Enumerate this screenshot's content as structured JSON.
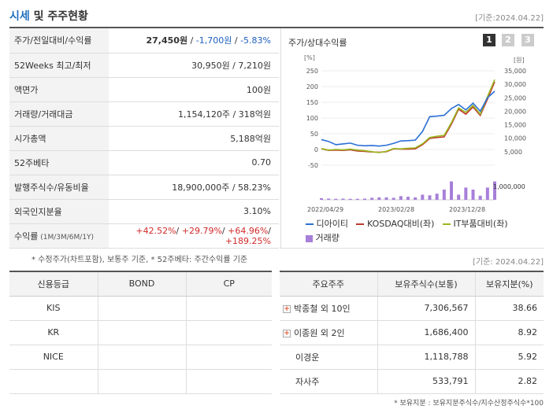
{
  "header": {
    "title_main": "시세",
    "title_rest": " 및 주주현황",
    "as_of": "[기준:2024.04.22]"
  },
  "summary": {
    "rows": [
      {
        "label": "주가/전일대비/수익률",
        "price": "27,450원",
        "sep1": " / ",
        "change": "-1,700원",
        "sep2": " / ",
        "rate": "-5.83%"
      },
      {
        "label": "52Weeks 최고/최저",
        "value": "30,950원 / 7,210원"
      },
      {
        "label": "액면가",
        "value": "100원"
      },
      {
        "label": "거래량/거래대금",
        "value": "1,154,120주 / 318억원"
      },
      {
        "label": "시가총액",
        "value": "5,188억원"
      },
      {
        "label": "52주베타",
        "value": "0.70"
      },
      {
        "label": "발행주식수/유동비율",
        "value": "18,900,000주 / 58.23%"
      },
      {
        "label": "외국인지분율",
        "value": "3.10%"
      },
      {
        "label": "수익률",
        "label_sub": " (1M/3M/6M/1Y)",
        "r1": "+42.52%",
        "r2": "+29.79%",
        "r3": "+64.96%",
        "r4": "+189.25%",
        "sep": "/ "
      }
    ],
    "note": "* 수정주가(차트포함), 보통주 기준, * 52주베타: 주간수익률 기준"
  },
  "chart": {
    "title": "주가/상대수익률",
    "pages": [
      "1",
      "2",
      "3"
    ],
    "active_page": 0,
    "left_unit": "[%]",
    "right_unit": "[원]",
    "left_ticks": [
      "250",
      "200",
      "150",
      "100",
      "50",
      "0",
      "-50"
    ],
    "right_ticks": [
      "35,000",
      "30,000",
      "25,000",
      "20,000",
      "15,000",
      "10,000",
      "5,000"
    ],
    "volume_tick": "1,000,000",
    "x_ticks": [
      "2022/04/29",
      "2023/02/28",
      "2023/12/28"
    ],
    "legend": [
      {
        "name": "디아이티",
        "color": "#2a6fd6",
        "kind": "line"
      },
      {
        "name": "KOSDAQ대비(좌)",
        "color": "#c0392b",
        "kind": "line"
      },
      {
        "name": "IT부품대비(좌)",
        "color": "#9ab820",
        "kind": "line"
      },
      {
        "name": "거래량",
        "color": "#a77fd9",
        "kind": "box"
      }
    ]
  },
  "chart_data": {
    "type": "line",
    "x_range": [
      "2022/04/29",
      "2024/04/22"
    ],
    "left_axis": {
      "label": "[%]",
      "ylim": [
        -50,
        250
      ]
    },
    "right_axis": {
      "label": "[원]",
      "ylim": [
        0,
        35000
      ]
    },
    "series": [
      {
        "name": "디아이티",
        "axis": "right",
        "values": [
          9500,
          8800,
          7600,
          7900,
          8200,
          7400,
          7200,
          7300,
          7100,
          7400,
          8100,
          9000,
          9100,
          9300,
          12500,
          18000,
          18200,
          18500,
          21000,
          22500,
          20500,
          23000,
          20000,
          25000,
          27450
        ]
      },
      {
        "name": "KOSDAQ대비(좌)",
        "axis": "left",
        "values": [
          2,
          -3,
          -2,
          -3,
          -1,
          -5,
          -6,
          -8,
          -9,
          -7,
          2,
          1,
          1,
          2,
          15,
          35,
          38,
          40,
          80,
          128,
          112,
          135,
          108,
          160,
          215
        ]
      },
      {
        "name": "IT부품대비(좌)",
        "axis": "left",
        "values": [
          3,
          -2,
          0,
          -1,
          1,
          -2,
          -4,
          -7,
          -10,
          -6,
          3,
          2,
          4,
          5,
          18,
          38,
          42,
          45,
          85,
          132,
          118,
          140,
          112,
          168,
          222
        ]
      },
      {
        "name": "거래량",
        "axis": "volume",
        "type": "bar",
        "values": [
          0.08,
          0.06,
          0.05,
          0.06,
          0.05,
          0.05,
          0.06,
          0.1,
          0.12,
          0.12,
          0.1,
          0.18,
          0.15,
          0.12,
          0.25,
          0.22,
          0.3,
          0.5,
          0.9,
          0.25,
          0.6,
          0.5,
          0.2,
          0.6,
          0.9
        ]
      }
    ],
    "volume_axis": {
      "tick": "1,000,000"
    },
    "x_ticks": [
      "2022/04/29",
      "2023/02/28",
      "2023/12/28"
    ]
  },
  "credit": {
    "headers": [
      "신용등급",
      "BOND",
      "CP"
    ],
    "rows": [
      {
        "agency": "KIS",
        "bond": "",
        "cp": ""
      },
      {
        "agency": "KR",
        "bond": "",
        "cp": ""
      },
      {
        "agency": "NICE",
        "bond": "",
        "cp": ""
      },
      {
        "agency": "",
        "bond": "",
        "cp": ""
      }
    ]
  },
  "holders": {
    "as_of": "[기준: 2024.04.22]",
    "headers": [
      "주요주주",
      "보유주식수(보통)",
      "보유지분(%)"
    ],
    "rows": [
      {
        "name": "박종철 외 10인",
        "shares": "7,306,567",
        "pct": "38.66",
        "expand": true
      },
      {
        "name": "이종원 외 2인",
        "shares": "1,686,400",
        "pct": "8.92",
        "expand": true
      },
      {
        "name": "이경운",
        "shares": "1,118,788",
        "pct": "5.92",
        "expand": false
      },
      {
        "name": "자사주",
        "shares": "533,791",
        "pct": "2.82",
        "expand": false
      }
    ],
    "expand_symbol": "+",
    "note": "* 보유지분 : 보유지분주식수/지수산정주식수*100"
  }
}
